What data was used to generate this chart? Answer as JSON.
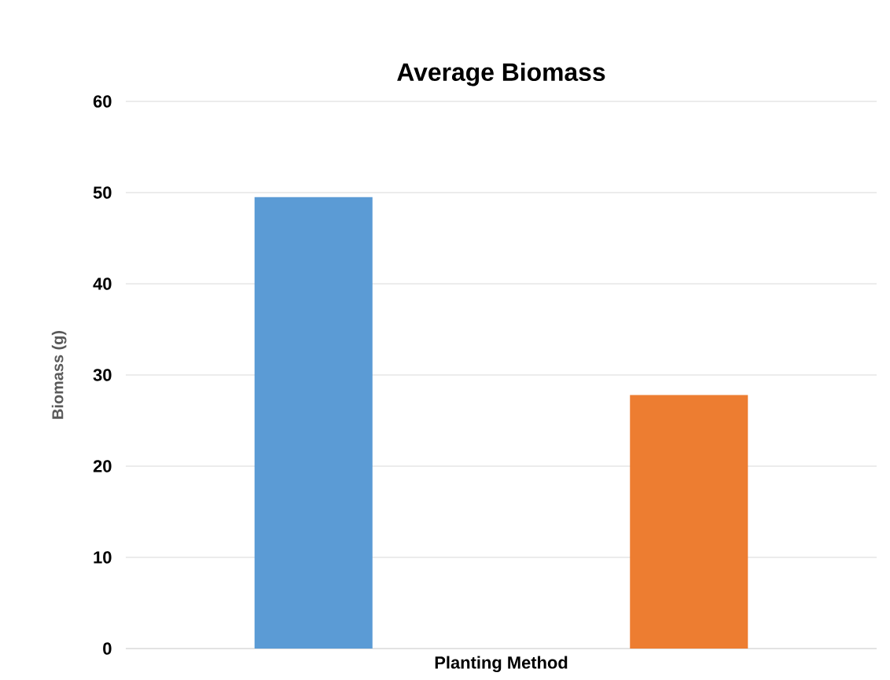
{
  "chart_data": {
    "type": "bar",
    "title": "Average Biomass",
    "xlabel": "Planting Method",
    "ylabel": "Biomass (g)",
    "categories": [
      null,
      null
    ],
    "values": [
      49.5,
      27.8
    ],
    "colors": [
      "#5b9bd5",
      "#ed7d31"
    ],
    "ylim": [
      0,
      60
    ],
    "yticks": [
      0,
      10,
      20,
      30,
      40,
      50,
      60
    ],
    "grid": "y"
  }
}
